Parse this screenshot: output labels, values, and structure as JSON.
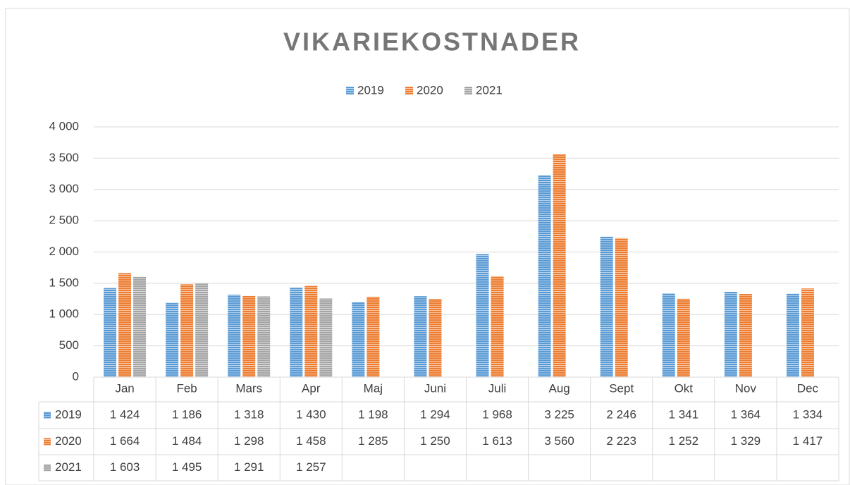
{
  "chart_data": {
    "type": "bar",
    "title": "VIKARIEKOSTNADER",
    "categories": [
      "Jan",
      "Feb",
      "Mars",
      "Apr",
      "Maj",
      "Juni",
      "Juli",
      "Aug",
      "Sept",
      "Okt",
      "Nov",
      "Dec"
    ],
    "series": [
      {
        "name": "2019",
        "color": "#5b9bd5",
        "values": [
          1424,
          1186,
          1318,
          1430,
          1198,
          1294,
          1968,
          3225,
          2246,
          1341,
          1364,
          1334
        ],
        "value_labels": [
          "1 424",
          "1 186",
          "1 318",
          "1 430",
          "1 198",
          "1 294",
          "1 968",
          "3 225",
          "2 246",
          "1 341",
          "1 364",
          "1 334"
        ]
      },
      {
        "name": "2020",
        "color": "#ed7d31",
        "values": [
          1664,
          1484,
          1298,
          1458,
          1285,
          1250,
          1613,
          3560,
          2223,
          1252,
          1329,
          1417
        ],
        "value_labels": [
          "1 664",
          "1 484",
          "1 298",
          "1 458",
          "1 285",
          "1 250",
          "1 613",
          "3 560",
          "2 223",
          "1 252",
          "1 329",
          "1 417"
        ]
      },
      {
        "name": "2021",
        "color": "#a5a5a5",
        "values": [
          1603,
          1495,
          1291,
          1257,
          null,
          null,
          null,
          null,
          null,
          null,
          null,
          null
        ],
        "value_labels": [
          "1 603",
          "1 495",
          "1 291",
          "1 257",
          null,
          null,
          null,
          null,
          null,
          null,
          null,
          null
        ]
      }
    ],
    "ylim": [
      0,
      4000
    ],
    "yticks": [
      0,
      500,
      {
        "value": 1000,
        "label": "1 000"
      },
      {
        "value": 1500,
        "label": "1 500"
      },
      {
        "value": 2000,
        "label": "2 000"
      },
      {
        "value": 2500,
        "label": "2 500"
      },
      {
        "value": 3000,
        "label": "3 000"
      },
      {
        "value": 3500,
        "label": "3 500"
      },
      {
        "value": 4000,
        "label": "4 000"
      }
    ],
    "grid": true,
    "legend": "top",
    "data_table": true
  }
}
